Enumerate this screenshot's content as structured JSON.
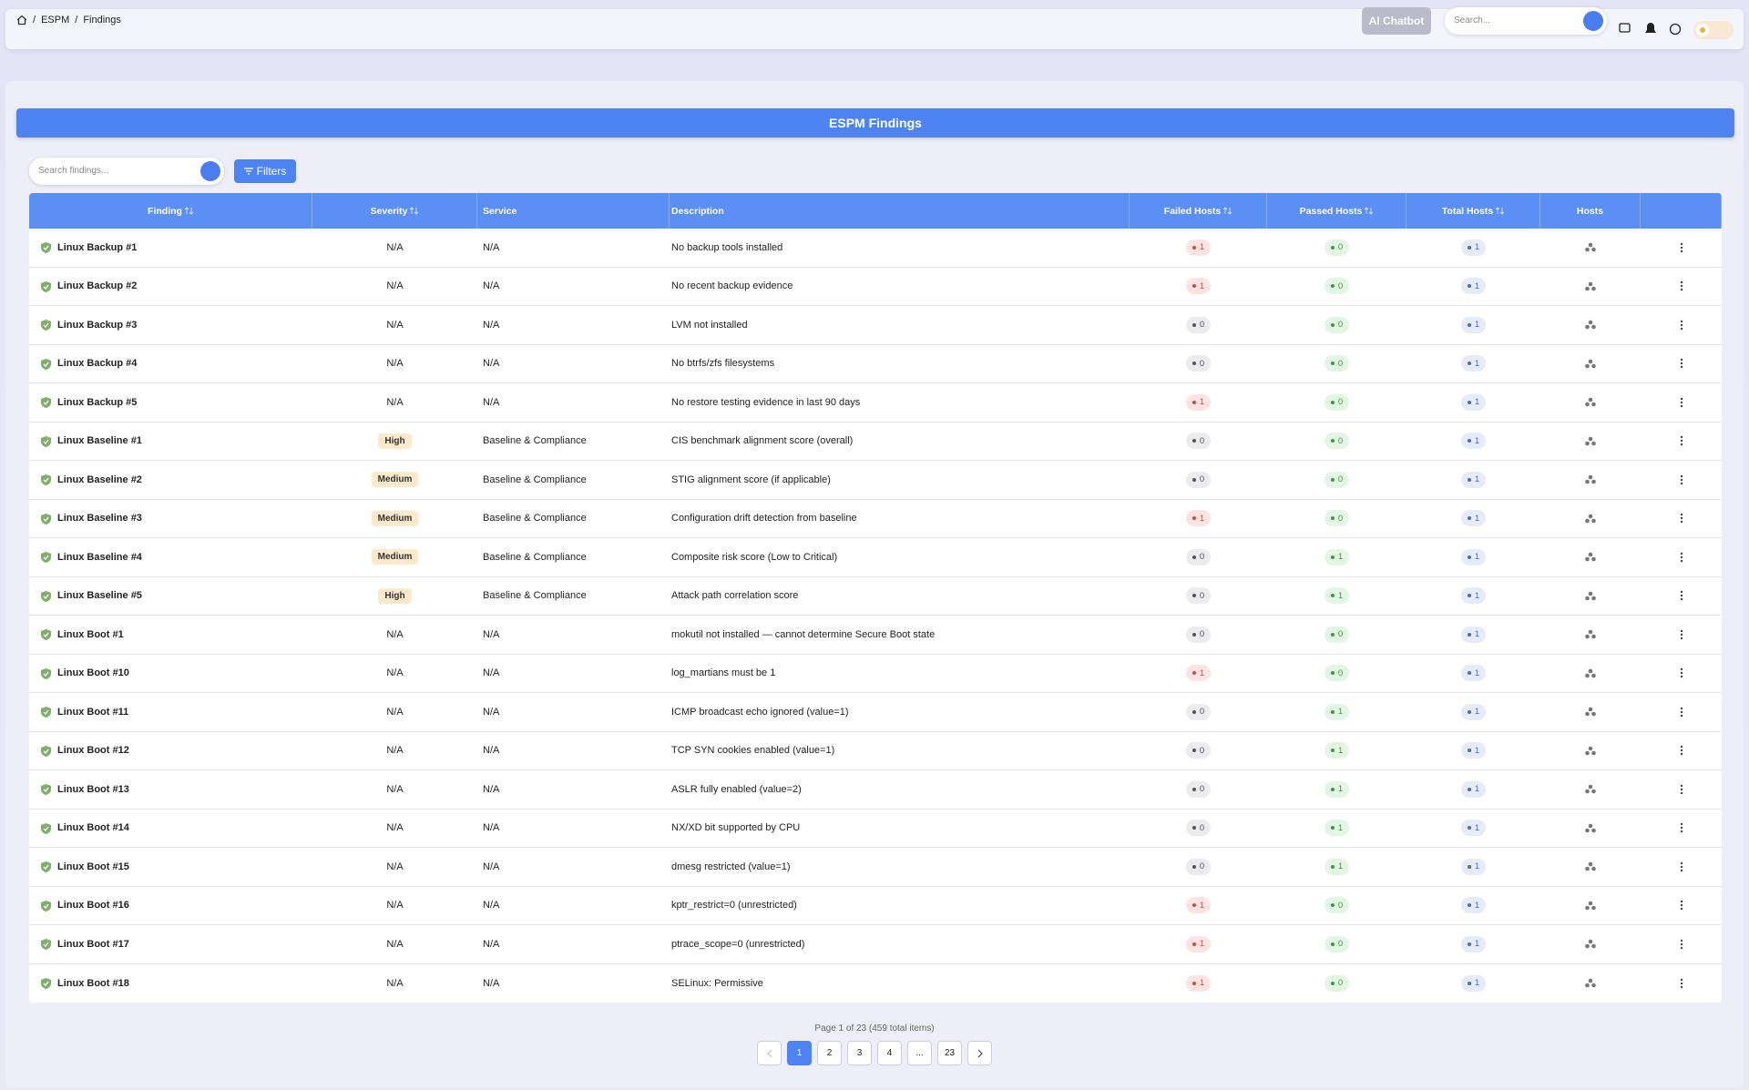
{
  "breadcrumb": [
    "ESPM",
    "Findings"
  ],
  "topbar": {
    "chatbot": "AI Chatbot",
    "search_placeholder": "Search..."
  },
  "header": {
    "title": "ESPM Findings"
  },
  "toolbar": {
    "search_placeholder": "Search findings...",
    "filters": "Filters"
  },
  "table": {
    "columns": [
      {
        "label": "Finding",
        "sortable": true
      },
      {
        "label": "Severity",
        "sortable": true
      },
      {
        "label": "Service",
        "sortable": false
      },
      {
        "label": "Description",
        "sortable": false
      },
      {
        "label": "Failed Hosts",
        "sortable": true
      },
      {
        "label": "Passed Hosts",
        "sortable": true
      },
      {
        "label": "Total Hosts",
        "sortable": true
      },
      {
        "label": "Hosts",
        "sortable": false
      }
    ],
    "rows": [
      {
        "finding": "Linux Backup #1",
        "severity": "N/A",
        "service": "N/A",
        "description": "No backup tools installed",
        "failed": 1,
        "passed": 0,
        "total": 1
      },
      {
        "finding": "Linux Backup #2",
        "severity": "N/A",
        "service": "N/A",
        "description": "No recent backup evidence",
        "failed": 1,
        "passed": 0,
        "total": 1
      },
      {
        "finding": "Linux Backup #3",
        "severity": "N/A",
        "service": "N/A",
        "description": "LVM not installed",
        "failed": 0,
        "passed": 0,
        "total": 1
      },
      {
        "finding": "Linux Backup #4",
        "severity": "N/A",
        "service": "N/A",
        "description": "No btrfs/zfs filesystems",
        "failed": 0,
        "passed": 0,
        "total": 1
      },
      {
        "finding": "Linux Backup #5",
        "severity": "N/A",
        "service": "N/A",
        "description": "No restore testing evidence in last 90 days",
        "failed": 1,
        "passed": 0,
        "total": 1
      },
      {
        "finding": "Linux Baseline #1",
        "severity": "High",
        "service": "Baseline & Compliance",
        "description": "CIS benchmark alignment score (overall)",
        "failed": 0,
        "passed": 0,
        "total": 1
      },
      {
        "finding": "Linux Baseline #2",
        "severity": "Medium",
        "service": "Baseline & Compliance",
        "description": "STIG alignment score (if applicable)",
        "failed": 0,
        "passed": 0,
        "total": 1
      },
      {
        "finding": "Linux Baseline #3",
        "severity": "Medium",
        "service": "Baseline & Compliance",
        "description": "Configuration drift detection from baseline",
        "failed": 1,
        "passed": 0,
        "total": 1
      },
      {
        "finding": "Linux Baseline #4",
        "severity": "Medium",
        "service": "Baseline & Compliance",
        "description": "Composite risk score (Low to Critical)",
        "failed": 0,
        "passed": 1,
        "total": 1
      },
      {
        "finding": "Linux Baseline #5",
        "severity": "High",
        "service": "Baseline & Compliance",
        "description": "Attack path correlation score",
        "failed": 0,
        "passed": 1,
        "total": 1
      },
      {
        "finding": "Linux Boot #1",
        "severity": "N/A",
        "service": "N/A",
        "description": "mokutil not installed — cannot determine Secure Boot state",
        "failed": 0,
        "passed": 0,
        "total": 1
      },
      {
        "finding": "Linux Boot #10",
        "severity": "N/A",
        "service": "N/A",
        "description": "log_martians must be 1",
        "failed": 1,
        "passed": 0,
        "total": 1
      },
      {
        "finding": "Linux Boot #11",
        "severity": "N/A",
        "service": "N/A",
        "description": "ICMP broadcast echo ignored (value=1)",
        "failed": 0,
        "passed": 1,
        "total": 1
      },
      {
        "finding": "Linux Boot #12",
        "severity": "N/A",
        "service": "N/A",
        "description": "TCP SYN cookies enabled (value=1)",
        "failed": 0,
        "passed": 1,
        "total": 1
      },
      {
        "finding": "Linux Boot #13",
        "severity": "N/A",
        "service": "N/A",
        "description": "ASLR fully enabled (value=2)",
        "failed": 0,
        "passed": 1,
        "total": 1
      },
      {
        "finding": "Linux Boot #14",
        "severity": "N/A",
        "service": "N/A",
        "description": "NX/XD bit supported by CPU",
        "failed": 0,
        "passed": 1,
        "total": 1
      },
      {
        "finding": "Linux Boot #15",
        "severity": "N/A",
        "service": "N/A",
        "description": "dmesg restricted (value=1)",
        "failed": 0,
        "passed": 1,
        "total": 1
      },
      {
        "finding": "Linux Boot #16",
        "severity": "N/A",
        "service": "N/A",
        "description": "kptr_restrict=0 (unrestricted)",
        "failed": 1,
        "passed": 0,
        "total": 1
      },
      {
        "finding": "Linux Boot #17",
        "severity": "N/A",
        "service": "N/A",
        "description": "ptrace_scope=0 (unrestricted)",
        "failed": 1,
        "passed": 0,
        "total": 1
      },
      {
        "finding": "Linux Boot #18",
        "severity": "N/A",
        "service": "N/A",
        "description": "SELinux: Permissive",
        "failed": 1,
        "passed": 0,
        "total": 1
      }
    ]
  },
  "pagination": {
    "summary": "Page 1 of 23 (459 total items)",
    "pages": [
      "1",
      "2",
      "3",
      "4",
      "...",
      "23"
    ]
  }
}
